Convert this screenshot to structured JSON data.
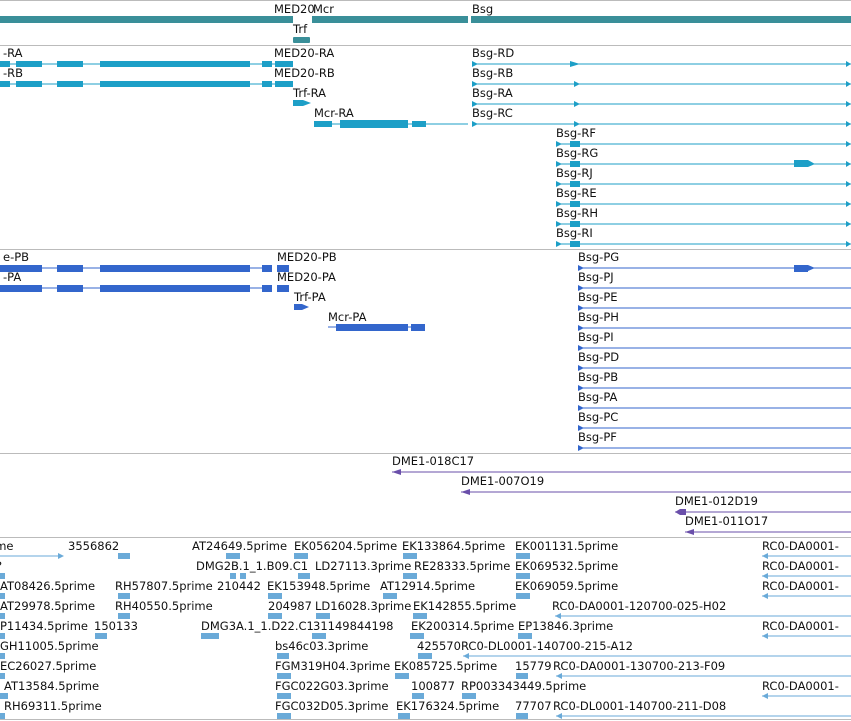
{
  "colors": {
    "gene": "#3a8f99",
    "transcript": "#1d9fc7",
    "cds": "#3366cc",
    "cdna": "#6a4faa",
    "est": "#6aaad8",
    "separator": "#bbbbbb"
  },
  "tracks": {
    "genes": {
      "items": [
        {
          "label": "MED20"
        },
        {
          "label": "Mcr"
        },
        {
          "label": "Trf"
        },
        {
          "label": "Bsg"
        }
      ]
    },
    "transcripts": {
      "items": [
        {
          "label": "-RA"
        },
        {
          "label": "-RB"
        },
        {
          "label": "MED20-RA"
        },
        {
          "label": "MED20-RB"
        },
        {
          "label": "Trf-RA"
        },
        {
          "label": "Mcr-RA"
        },
        {
          "label": "Bsg-RD"
        },
        {
          "label": "Bsg-RB"
        },
        {
          "label": "Bsg-RA"
        },
        {
          "label": "Bsg-RC"
        },
        {
          "label": "Bsg-RF"
        },
        {
          "label": "Bsg-RG"
        },
        {
          "label": "Bsg-RJ"
        },
        {
          "label": "Bsg-RE"
        },
        {
          "label": "Bsg-RH"
        },
        {
          "label": "Bsg-RI"
        }
      ]
    },
    "proteins": {
      "items": [
        {
          "label": "e-PB"
        },
        {
          "label": "-PA"
        },
        {
          "label": "MED20-PB"
        },
        {
          "label": "MED20-PA"
        },
        {
          "label": "Trf-PA"
        },
        {
          "label": "Mcr-PA"
        },
        {
          "label": "Bsg-PG"
        },
        {
          "label": "Bsg-PJ"
        },
        {
          "label": "Bsg-PE"
        },
        {
          "label": "Bsg-PH"
        },
        {
          "label": "Bsg-PI"
        },
        {
          "label": "Bsg-PD"
        },
        {
          "label": "Bsg-PB"
        },
        {
          "label": "Bsg-PA"
        },
        {
          "label": "Bsg-PC"
        },
        {
          "label": "Bsg-PF"
        }
      ]
    },
    "cdna": {
      "items": [
        {
          "label": "DME1-018C17"
        },
        {
          "label": "DME1-007O19"
        },
        {
          "label": "DME1-012D19"
        },
        {
          "label": "DME1-011O17"
        }
      ]
    },
    "est": {
      "items": [
        {
          "label": "ime"
        },
        {
          "label": "3556862"
        },
        {
          "label": "AT24649.5prime"
        },
        {
          "label": "EK056204.5prime"
        },
        {
          "label": "EK133864.5prime"
        },
        {
          "label": "EK001131.5prime"
        },
        {
          "label": "RC0-DA0001-"
        },
        {
          "label": "?"
        },
        {
          "label": "DMG2B.1_1.B09.C1"
        },
        {
          "label": "LD27113.3prime"
        },
        {
          "label": "RE28333.5prime"
        },
        {
          "label": "EK069532.5prime"
        },
        {
          "label": "RC0-DA0001-"
        },
        {
          "label": "AT08426.5prime"
        },
        {
          "label": "RH57807.5prime"
        },
        {
          "label": "210442"
        },
        {
          "label": "EK153948.5prime"
        },
        {
          "label": "AT12914.5prime"
        },
        {
          "label": "EK069059.5prime"
        },
        {
          "label": "RC0-DA0001-"
        },
        {
          "label": "AT29978.5prime"
        },
        {
          "label": "RH40550.5prime"
        },
        {
          "label": "204987"
        },
        {
          "label": "LD16028.3prime"
        },
        {
          "label": "EK142855.5prime"
        },
        {
          "label": "RC0-DA0001-120700-025-H02"
        },
        {
          "label": "P11434.5prime"
        },
        {
          "label": "150133"
        },
        {
          "label": "DMG3A.1_1.D22.C1"
        },
        {
          "label": "31149844198"
        },
        {
          "label": "EK200314.5prime"
        },
        {
          "label": "EP13846.3prime"
        },
        {
          "label": "RC0-DA0001-"
        },
        {
          "label": "GH11005.5prime"
        },
        {
          "label": "bs46c03.3prime"
        },
        {
          "label": "425570"
        },
        {
          "label": "RC0-DL0001-140700-215-A12"
        },
        {
          "label": "EC26027.5prime"
        },
        {
          "label": "FGM319H04.3prime"
        },
        {
          "label": "EK085725.5prime"
        },
        {
          "label": "15779"
        },
        {
          "label": "RC0-DA0001-130700-213-F09"
        },
        {
          "label": "AT13584.5prime"
        },
        {
          "label": "FGC022G03.3prime"
        },
        {
          "label": "100877"
        },
        {
          "label": "RP003343449.5prime"
        },
        {
          "label": "RC0-DA0001-"
        },
        {
          "label": "RH69311.5prime"
        },
        {
          "label": "FGC032D05.3prime"
        },
        {
          "label": "EK176324.5prime"
        },
        {
          "label": "77707"
        },
        {
          "label": "RC0-DL0001-140700-211-D08"
        }
      ]
    }
  }
}
